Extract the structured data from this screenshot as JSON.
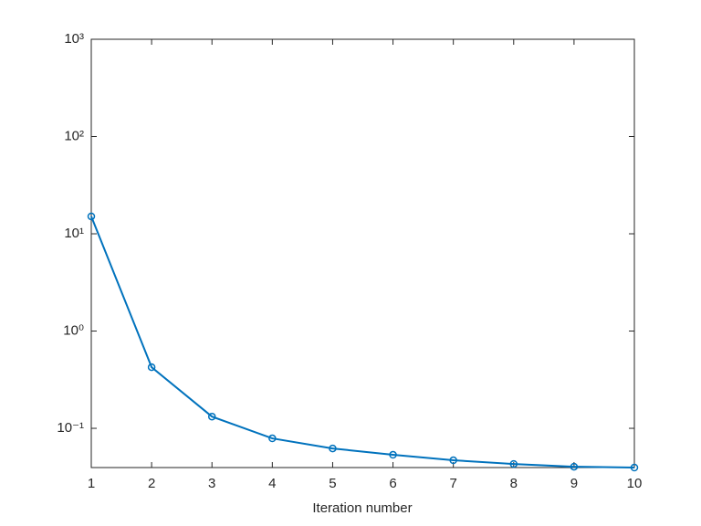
{
  "chart_data": {
    "type": "line",
    "xlabel": "Iteration number",
    "x": [
      1,
      2,
      3,
      4,
      5,
      6,
      7,
      8,
      9,
      10
    ],
    "series": [
      {
        "color": "#0072bd",
        "values": [
          15.1,
          0.425,
          0.132,
          0.0788,
          0.0621,
          0.0534,
          0.0469,
          0.043,
          0.0403,
          0.0395
        ]
      }
    ],
    "xlim": [
      1,
      10
    ],
    "xticks": [
      1,
      2,
      3,
      4,
      5,
      6,
      7,
      8,
      9,
      10
    ],
    "ylim": [
      0.0395,
      1000
    ],
    "yscale": "log",
    "yticks": [
      {
        "value": 0.1,
        "label": "10⁻¹"
      },
      {
        "value": 1,
        "label": "10⁰"
      },
      {
        "value": 10,
        "label": "10¹"
      },
      {
        "value": 100,
        "label": "10²"
      },
      {
        "value": 1000,
        "label": "10³"
      }
    ],
    "grid": false
  }
}
